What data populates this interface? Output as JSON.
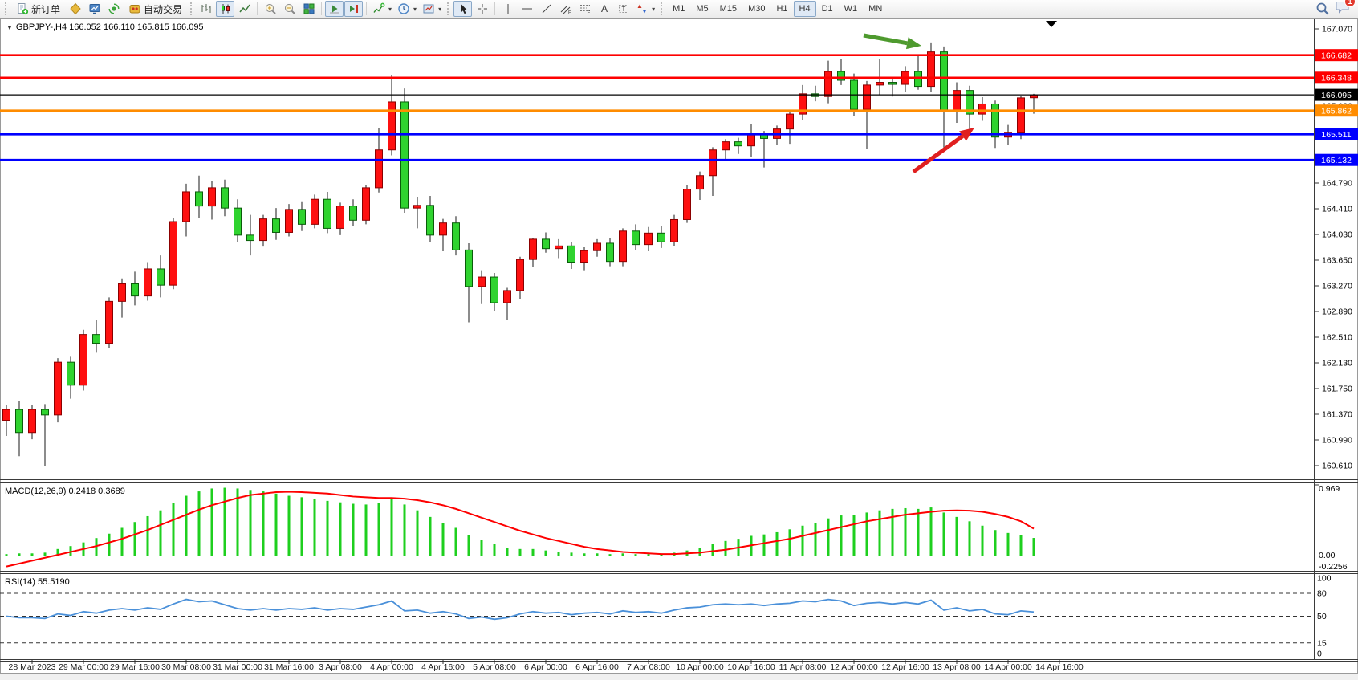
{
  "toolbar": {
    "new_order": "新订单",
    "autotrading": "自动交易",
    "timeframes": [
      "M1",
      "M5",
      "M15",
      "M30",
      "H1",
      "H4",
      "D1",
      "W1",
      "MN"
    ],
    "active_timeframe": "H4",
    "notification_count": "1"
  },
  "header": {
    "title_full": "GBPJPY-,H4  166.052 166.110 165.815 166.095"
  },
  "panels": {
    "macd_label_full": "MACD(12,26,9) 0.2418 0.3689",
    "rsi_label_full": "RSI(14) 55.5190"
  },
  "chart_data": {
    "type": "candlestick",
    "symbol": "GBPJPY-",
    "timeframe": "H4",
    "ohlc_current": {
      "open": 166.052,
      "high": 166.11,
      "low": 165.815,
      "close": 166.095
    },
    "colors": {
      "bull": "#fe1010",
      "bull_border": "#8c0000",
      "bear": "#2fd32f",
      "bear_border": "#0a5c0a",
      "wick": "#1a1a1a",
      "line_red": "#fe0000",
      "line_orange": "#ff8c00",
      "line_blue": "#0000fe",
      "current_price_line": "#000000",
      "macd_hist": "#1ecf1e",
      "macd_signal": "#fe0000",
      "rsi_line": "#4a90d9",
      "arrow_green": "#4e9a2e",
      "arrow_red": "#e02020"
    },
    "price_axis": {
      "min": 160.61,
      "max": 167.07,
      "tick_step": 0.38,
      "ticks": [
        "167.070",
        "166.690",
        "166.310",
        "165.930",
        "165.550",
        "165.170",
        "164.790",
        "164.410",
        "164.030",
        "163.650",
        "163.270",
        "162.890",
        "162.510",
        "162.130",
        "161.750",
        "161.370",
        "160.990",
        "160.610"
      ]
    },
    "hlines": [
      {
        "price": 166.682,
        "label": "166.682",
        "color": "#fe0000"
      },
      {
        "price": 166.348,
        "label": "166.348",
        "color": "#fe0000"
      },
      {
        "price": 165.862,
        "label": "165.862",
        "color": "#ff8c00"
      },
      {
        "price": 165.511,
        "label": "165.511",
        "color": "#0000fe"
      },
      {
        "price": 165.132,
        "label": "165.132",
        "color": "#0000fe"
      }
    ],
    "current_price": {
      "price": 166.095,
      "label": "166.095",
      "color": "#000000"
    },
    "time_labels": [
      "28 Mar 2023",
      "29 Mar 00:00",
      "29 Mar 16:00",
      "30 Mar 08:00",
      "31 Mar 00:00",
      "31 Mar 16:00",
      "3 Apr 08:00",
      "4 Apr 00:00",
      "4 Apr 16:00",
      "5 Apr 08:00",
      "6 Apr 00:00",
      "6 Apr 16:00",
      "7 Apr 08:00",
      "10 Apr 00:00",
      "10 Apr 16:00",
      "11 Apr 08:00",
      "12 Apr 00:00",
      "12 Apr 16:00",
      "13 Apr 08:00",
      "14 Apr 00:00",
      "14 Apr 16:00"
    ],
    "candles": [
      [
        161.28,
        161.5,
        161.05,
        161.44
      ],
      [
        161.44,
        161.56,
        160.75,
        161.1
      ],
      [
        161.1,
        161.5,
        161.0,
        161.44
      ],
      [
        161.44,
        161.52,
        160.61,
        161.36
      ],
      [
        161.36,
        162.2,
        161.25,
        162.14
      ],
      [
        162.14,
        162.22,
        161.6,
        161.8
      ],
      [
        161.8,
        162.62,
        161.72,
        162.55
      ],
      [
        162.55,
        162.77,
        162.28,
        162.42
      ],
      [
        162.42,
        163.1,
        162.35,
        163.04
      ],
      [
        163.04,
        163.38,
        162.8,
        163.3
      ],
      [
        163.3,
        163.48,
        162.98,
        163.12
      ],
      [
        163.12,
        163.62,
        163.05,
        163.52
      ],
      [
        163.52,
        163.72,
        163.1,
        163.28
      ],
      [
        163.28,
        164.28,
        163.22,
        164.22
      ],
      [
        164.22,
        164.78,
        164.0,
        164.66
      ],
      [
        164.66,
        164.9,
        164.28,
        164.45
      ],
      [
        164.45,
        164.82,
        164.25,
        164.72
      ],
      [
        164.72,
        164.84,
        164.3,
        164.42
      ],
      [
        164.42,
        164.55,
        163.92,
        164.02
      ],
      [
        164.02,
        164.32,
        163.72,
        163.94
      ],
      [
        163.94,
        164.32,
        163.85,
        164.26
      ],
      [
        164.26,
        164.42,
        163.95,
        164.06
      ],
      [
        164.06,
        164.48,
        164.0,
        164.4
      ],
      [
        164.4,
        164.52,
        164.08,
        164.18
      ],
      [
        164.18,
        164.62,
        164.12,
        164.55
      ],
      [
        164.55,
        164.66,
        164.05,
        164.12
      ],
      [
        164.12,
        164.5,
        164.02,
        164.45
      ],
      [
        164.45,
        164.55,
        164.15,
        164.24
      ],
      [
        164.24,
        164.76,
        164.18,
        164.72
      ],
      [
        164.72,
        165.6,
        164.65,
        165.28
      ],
      [
        165.28,
        166.39,
        165.2,
        165.99
      ],
      [
        165.99,
        166.19,
        164.35,
        164.42
      ],
      [
        164.42,
        164.58,
        164.12,
        164.46
      ],
      [
        164.46,
        164.6,
        163.92,
        164.02
      ],
      [
        164.02,
        164.26,
        163.78,
        164.2
      ],
      [
        164.2,
        164.3,
        163.72,
        163.8
      ],
      [
        163.8,
        163.9,
        162.73,
        163.26
      ],
      [
        163.26,
        163.5,
        163.0,
        163.4
      ],
      [
        163.4,
        163.46,
        162.89,
        163.02
      ],
      [
        163.02,
        163.24,
        162.77,
        163.2
      ],
      [
        163.2,
        163.7,
        163.08,
        163.66
      ],
      [
        163.66,
        163.98,
        163.55,
        163.96
      ],
      [
        163.96,
        164.06,
        163.76,
        163.82
      ],
      [
        163.82,
        163.96,
        163.68,
        163.86
      ],
      [
        163.86,
        163.92,
        163.52,
        163.62
      ],
      [
        163.62,
        163.84,
        163.5,
        163.79
      ],
      [
        163.79,
        163.96,
        163.7,
        163.9
      ],
      [
        163.9,
        163.97,
        163.56,
        163.63
      ],
      [
        163.63,
        164.12,
        163.56,
        164.08
      ],
      [
        164.08,
        164.18,
        163.8,
        163.88
      ],
      [
        163.88,
        164.14,
        163.78,
        164.05
      ],
      [
        164.05,
        164.16,
        163.83,
        163.92
      ],
      [
        163.92,
        164.32,
        163.86,
        164.25
      ],
      [
        164.25,
        164.76,
        164.2,
        164.7
      ],
      [
        164.7,
        164.96,
        164.54,
        164.9
      ],
      [
        164.9,
        165.32,
        164.6,
        165.28
      ],
      [
        165.28,
        165.44,
        165.12,
        165.4
      ],
      [
        165.4,
        165.46,
        165.22,
        165.34
      ],
      [
        165.34,
        165.66,
        165.17,
        165.51
      ],
      [
        165.51,
        165.56,
        165.02,
        165.45
      ],
      [
        165.45,
        165.64,
        165.36,
        165.59
      ],
      [
        165.59,
        165.86,
        165.37,
        165.81
      ],
      [
        165.81,
        166.24,
        165.72,
        166.11
      ],
      [
        166.11,
        166.23,
        166.0,
        166.07
      ],
      [
        166.07,
        166.6,
        165.97,
        166.44
      ],
      [
        166.44,
        166.62,
        166.24,
        166.31
      ],
      [
        166.31,
        166.41,
        165.78,
        165.88
      ],
      [
        165.88,
        166.3,
        165.29,
        166.24
      ],
      [
        166.24,
        166.62,
        166.09,
        166.28
      ],
      [
        166.28,
        166.36,
        166.07,
        166.25
      ],
      [
        166.25,
        166.52,
        166.14,
        166.44
      ],
      [
        166.44,
        166.69,
        166.17,
        166.22
      ],
      [
        166.22,
        166.87,
        166.14,
        166.73
      ],
      [
        166.73,
        166.81,
        165.29,
        165.87
      ],
      [
        165.87,
        166.28,
        165.68,
        166.16
      ],
      [
        166.16,
        166.23,
        165.58,
        165.81
      ],
      [
        165.81,
        166.06,
        165.71,
        165.96
      ],
      [
        165.96,
        166.01,
        165.31,
        165.47
      ],
      [
        165.47,
        165.65,
        165.36,
        165.53
      ],
      [
        165.53,
        166.08,
        165.44,
        166.05
      ],
      [
        166.052,
        166.11,
        165.815,
        166.095
      ]
    ],
    "indicators": {
      "macd": {
        "name": "MACD",
        "params": "12,26,9",
        "value_main": 0.2418,
        "value_signal": 0.3689,
        "scale": {
          "max": 0.969,
          "zero": "0.00",
          "min": -0.2256
        },
        "histogram": [
          0.02,
          0.03,
          0.03,
          0.04,
          0.09,
          0.13,
          0.18,
          0.24,
          0.3,
          0.38,
          0.46,
          0.54,
          0.62,
          0.72,
          0.82,
          0.88,
          0.92,
          0.93,
          0.92,
          0.9,
          0.88,
          0.85,
          0.82,
          0.8,
          0.78,
          0.75,
          0.73,
          0.71,
          0.7,
          0.72,
          0.78,
          0.7,
          0.62,
          0.53,
          0.45,
          0.38,
          0.28,
          0.22,
          0.16,
          0.11,
          0.09,
          0.09,
          0.07,
          0.05,
          0.04,
          0.03,
          0.03,
          0.02,
          0.03,
          0.02,
          0.02,
          0.02,
          0.04,
          0.07,
          0.11,
          0.16,
          0.2,
          0.23,
          0.27,
          0.29,
          0.32,
          0.36,
          0.41,
          0.45,
          0.51,
          0.55,
          0.56,
          0.59,
          0.62,
          0.64,
          0.65,
          0.64,
          0.66,
          0.59,
          0.53,
          0.47,
          0.41,
          0.35,
          0.31,
          0.28,
          0.2418
        ],
        "signal_line": [
          -0.15,
          -0.11,
          -0.07,
          -0.03,
          0.01,
          0.05,
          0.09,
          0.13,
          0.18,
          0.23,
          0.29,
          0.35,
          0.42,
          0.49,
          0.56,
          0.63,
          0.69,
          0.74,
          0.79,
          0.83,
          0.85,
          0.87,
          0.875,
          0.87,
          0.86,
          0.85,
          0.83,
          0.81,
          0.8,
          0.79,
          0.79,
          0.78,
          0.76,
          0.73,
          0.69,
          0.64,
          0.58,
          0.52,
          0.46,
          0.4,
          0.34,
          0.29,
          0.24,
          0.2,
          0.16,
          0.12,
          0.09,
          0.07,
          0.05,
          0.04,
          0.03,
          0.02,
          0.02,
          0.03,
          0.04,
          0.06,
          0.08,
          0.11,
          0.14,
          0.17,
          0.2,
          0.23,
          0.27,
          0.31,
          0.35,
          0.39,
          0.43,
          0.47,
          0.5,
          0.53,
          0.56,
          0.58,
          0.6,
          0.615,
          0.62,
          0.615,
          0.6,
          0.57,
          0.53,
          0.47,
          0.3689
        ]
      },
      "rsi": {
        "name": "RSI",
        "params": "14",
        "value": 55.519,
        "levels": [
          "100",
          "80",
          "50",
          "15",
          "0"
        ],
        "dashed_levels": [
          80,
          50,
          15
        ],
        "values": [
          50,
          48,
          48,
          47,
          53,
          51,
          56,
          54,
          58,
          60,
          58,
          61,
          59,
          66,
          72,
          69,
          70,
          65,
          60,
          58,
          60,
          58,
          60,
          59,
          61,
          58,
          60,
          59,
          62,
          65,
          70,
          57,
          58,
          54,
          56,
          53,
          47,
          49,
          46,
          48,
          53,
          56,
          54,
          55,
          52,
          54,
          55,
          53,
          57,
          55,
          56,
          54,
          58,
          61,
          62,
          65,
          66,
          65,
          66,
          64,
          66,
          67,
          70,
          69,
          72,
          70,
          64,
          67,
          68,
          66,
          68,
          66,
          71,
          58,
          61,
          57,
          59,
          53,
          52,
          57,
          55.52
        ]
      }
    },
    "annotations": [
      {
        "type": "arrow",
        "color": "#4e9a2e",
        "from": [
          1076,
          44
        ],
        "to": [
          1148,
          57
        ]
      },
      {
        "type": "arrow",
        "color": "#e02020",
        "from": [
          1138,
          214
        ],
        "to": [
          1214,
          159
        ]
      }
    ]
  }
}
